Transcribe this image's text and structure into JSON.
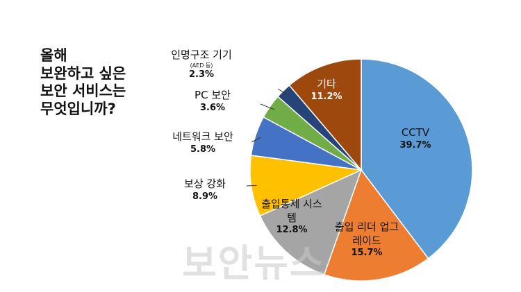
{
  "chart_data": {
    "type": "pie",
    "title": [
      "올해",
      "보완하고 싶은",
      "보안 서비스는",
      "무엇입니까?"
    ],
    "categories": [
      "CCTV",
      "출입 리더 업그레이드",
      "출입통제 시스템",
      "보상 강화",
      "네트워크 보안",
      "PC 보안",
      "인명구조 기기",
      "기타"
    ],
    "values": [
      39.7,
      15.7,
      12.8,
      8.9,
      5.8,
      3.6,
      2.3,
      11.2
    ],
    "value_labels": [
      "39.7%",
      "15.7%",
      "12.8%",
      "8.9%",
      "5.8%",
      "3.6%",
      "2.3%",
      "11.2%"
    ],
    "colors": [
      "#5b9bd5",
      "#ed7d31",
      "#a5a5a5",
      "#ffc000",
      "#4472c4",
      "#70ad47",
      "#264478",
      "#9e480e"
    ],
    "annotation": "(AED 등)",
    "watermark": "보안뉴스"
  }
}
